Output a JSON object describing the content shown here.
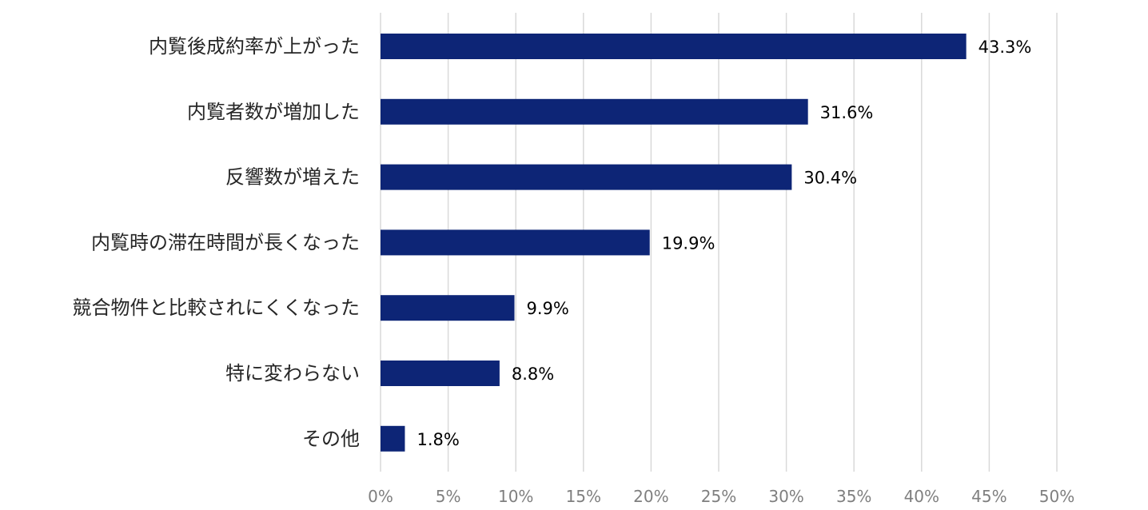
{
  "chart_data": {
    "type": "bar",
    "orientation": "horizontal",
    "title": "",
    "xlabel": "",
    "ylabel": "",
    "categories": [
      "内覧後成約率が上がった",
      "内覧者数が増加した",
      "反響数が増えた",
      "内覧時の滞在時間が長くなった",
      "競合物件と比較されにくくなった",
      "特に変わらない",
      "その他"
    ],
    "values": [
      43.3,
      31.6,
      30.4,
      19.9,
      9.9,
      8.8,
      1.8
    ],
    "value_labels": [
      "43.3%",
      "31.6%",
      "30.4%",
      "19.9%",
      "9.9%",
      "8.8%",
      "1.8%"
    ],
    "xlim": [
      0,
      50
    ],
    "x_ticks": [
      0,
      5,
      10,
      15,
      20,
      25,
      30,
      35,
      40,
      45,
      50
    ],
    "x_tick_labels": [
      "0%",
      "5%",
      "10%",
      "15%",
      "20%",
      "25%",
      "30%",
      "35%",
      "40%",
      "45%",
      "50%"
    ],
    "grid": true,
    "legend": "none",
    "colors": {
      "bar": "#0d2576",
      "grid": "#d9d9d9",
      "category_text": "#262626",
      "value_text": "#000000",
      "tick_text": "#7f7f7f"
    }
  }
}
